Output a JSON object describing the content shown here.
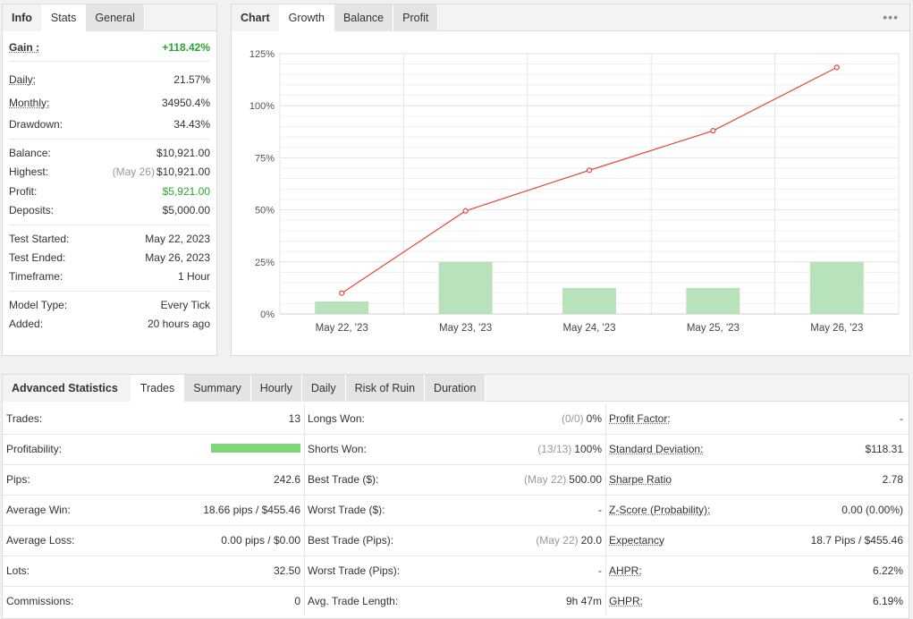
{
  "info_panel": {
    "tabs": [
      {
        "label": "Info",
        "kind": "label"
      },
      {
        "label": "Stats",
        "kind": "active"
      },
      {
        "label": "General",
        "kind": "tab"
      }
    ],
    "gain": {
      "label": "Gain :",
      "value": "+118.42%"
    },
    "daily": {
      "label": "Daily:",
      "value": "21.57%"
    },
    "monthly": {
      "label": "Monthly:",
      "value": "34950.4%"
    },
    "drawdown": {
      "label": "Drawdown:",
      "value": "34.43%"
    },
    "balance": {
      "label": "Balance:",
      "value": "$10,921.00"
    },
    "highest": {
      "label": "Highest:",
      "date": "(May 26)",
      "value": "$10,921.00"
    },
    "profit": {
      "label": "Profit:",
      "value": "$5,921.00"
    },
    "deposits": {
      "label": "Deposits:",
      "value": "$5,000.00"
    },
    "test_started": {
      "label": "Test Started:",
      "value": "May 22, 2023"
    },
    "test_ended": {
      "label": "Test Ended:",
      "value": "May 26, 2023"
    },
    "timeframe": {
      "label": "Timeframe:",
      "value": "1 Hour"
    },
    "model_type": {
      "label": "Model Type:",
      "value": "Every Tick"
    },
    "added": {
      "label": "Added:",
      "value": "20 hours ago"
    }
  },
  "chart_panel": {
    "tabs": [
      {
        "label": "Chart",
        "kind": "label"
      },
      {
        "label": "Growth",
        "kind": "active"
      },
      {
        "label": "Balance",
        "kind": "tab"
      },
      {
        "label": "Profit",
        "kind": "tab"
      }
    ],
    "menu_label": "•••"
  },
  "chart_data": {
    "type": "bar",
    "categories": [
      "May 22, '23",
      "May 23, '23",
      "May 24, '23",
      "May 25, '23",
      "May 26, '23"
    ],
    "series": [
      {
        "type": "bar",
        "values": [
          6,
          25,
          12.5,
          12.5,
          25
        ],
        "color": "#b8e2bb"
      },
      {
        "type": "line",
        "values": [
          10,
          49.5,
          69,
          88,
          118.4
        ],
        "color": "#e8463a"
      }
    ],
    "yticks": [
      "0%",
      "25%",
      "50%",
      "75%",
      "100%",
      "125%"
    ],
    "ylim": [
      0,
      125
    ],
    "grid": true
  },
  "adv_panel": {
    "tabs": [
      {
        "label": "Advanced Statistics",
        "kind": "label"
      },
      {
        "label": "Trades",
        "kind": "active"
      },
      {
        "label": "Summary",
        "kind": "tab"
      },
      {
        "label": "Hourly",
        "kind": "tab"
      },
      {
        "label": "Daily",
        "kind": "tab"
      },
      {
        "label": "Risk of Ruin",
        "kind": "tab"
      },
      {
        "label": "Duration",
        "kind": "tab"
      }
    ],
    "col1": [
      {
        "label": "Trades:",
        "value": "13"
      },
      {
        "label": "Profitability:",
        "value": "",
        "bar_fraction": 1.0
      },
      {
        "label": "Pips:",
        "value": "242.6"
      },
      {
        "label": "Average Win:",
        "value": "18.66 pips / $455.46"
      },
      {
        "label": "Average Loss:",
        "value": "0.00 pips / $0.00"
      },
      {
        "label": "Lots:",
        "value": "32.50"
      },
      {
        "label": "Commissions:",
        "value": "0"
      }
    ],
    "col2": [
      {
        "label": "Longs Won:",
        "muted": "(0/0)",
        "value": "0%"
      },
      {
        "label": "Shorts Won:",
        "muted": "(13/13)",
        "value": "100%"
      },
      {
        "label": "Best Trade ($):",
        "muted": "(May 22)",
        "value": "500.00"
      },
      {
        "label": "Worst Trade ($):",
        "muted": "",
        "value": "-"
      },
      {
        "label": "Best Trade (Pips):",
        "muted": "(May 22)",
        "value": "20.0"
      },
      {
        "label": "Worst Trade (Pips):",
        "muted": "",
        "value": "-"
      },
      {
        "label": "Avg. Trade Length:",
        "muted": "",
        "value": "9h 47m"
      }
    ],
    "col3": [
      {
        "label": "Profit Factor:",
        "value": "-",
        "underline": true
      },
      {
        "label": "Standard Deviation:",
        "value": "$118.31",
        "underline": true
      },
      {
        "label": "Sharpe Ratio",
        "value": "2.78",
        "underline": true
      },
      {
        "label": "Z-Score (Probability):",
        "value": "0.00 (0.00%)",
        "underline": true
      },
      {
        "label": "Expectancy",
        "value": "18.7 Pips / $455.46",
        "underline": true
      },
      {
        "label": "AHPR:",
        "value": "6.22%",
        "underline": true
      },
      {
        "label": "GHPR:",
        "value": "6.19%",
        "underline": true
      }
    ]
  }
}
